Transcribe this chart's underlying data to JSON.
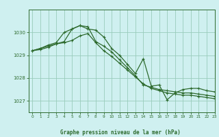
{
  "title": "Graphe pression niveau de la mer (hPa)",
  "background_color": "#cff0f0",
  "grid_color": "#99ccbb",
  "line_color": "#2d6a2d",
  "spine_color": "#2d6a2d",
  "xlim": [
    -0.5,
    23
  ],
  "ylim": [
    1026.5,
    1031.0
  ],
  "yticks": [
    1027,
    1028,
    1029,
    1030
  ],
  "xticks": [
    0,
    1,
    2,
    3,
    4,
    5,
    6,
    7,
    8,
    9,
    10,
    11,
    12,
    13,
    14,
    15,
    16,
    17,
    18,
    19,
    20,
    21,
    22,
    23
  ],
  "series": [
    [
      1029.2,
      1029.3,
      1029.4,
      1029.5,
      1029.6,
      1030.15,
      1030.3,
      1030.15,
      1030.1,
      1029.8,
      1029.3,
      1029.0,
      1028.6,
      1028.2,
      1028.85,
      1027.65,
      1027.7,
      1027.05,
      1027.35,
      1027.5,
      1027.55,
      1027.55,
      1027.45,
      1027.4
    ],
    [
      1029.2,
      1029.3,
      1029.45,
      1029.55,
      1030.0,
      1030.15,
      1030.3,
      1030.25,
      1029.6,
      1029.4,
      1029.15,
      1028.8,
      1028.45,
      1028.1,
      1027.7,
      1027.6,
      1027.5,
      1027.45,
      1027.4,
      1027.35,
      1027.35,
      1027.3,
      1027.25,
      1027.2
    ],
    [
      1029.2,
      1029.25,
      1029.35,
      1029.5,
      1029.55,
      1029.65,
      1029.85,
      1029.95,
      1029.55,
      1029.2,
      1028.95,
      1028.65,
      1028.35,
      1028.05,
      1027.75,
      1027.55,
      1027.45,
      1027.35,
      1027.3,
      1027.25,
      1027.25,
      1027.2,
      1027.15,
      1027.1
    ]
  ]
}
